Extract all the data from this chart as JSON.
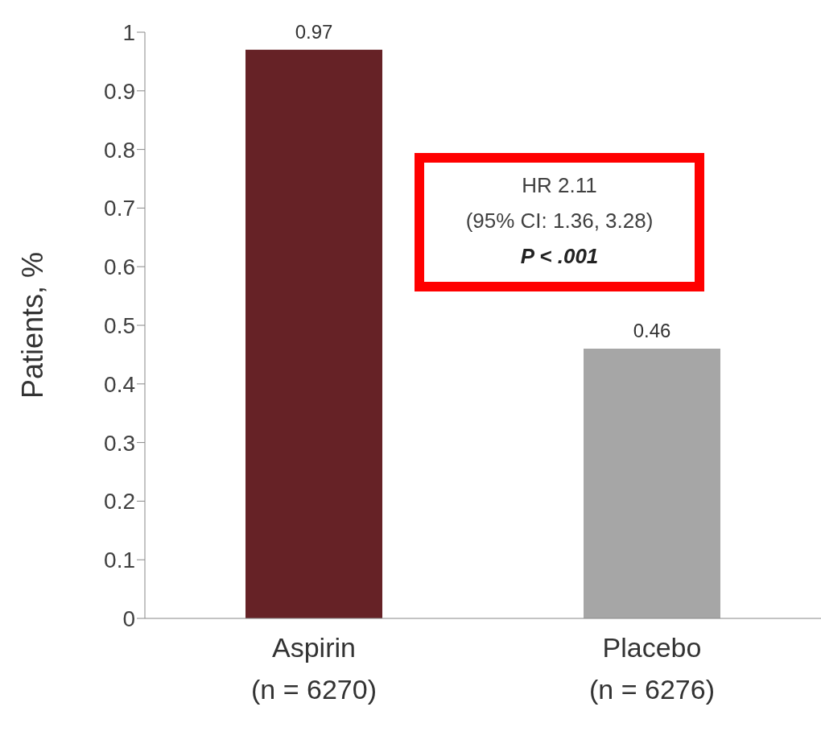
{
  "chart_data": {
    "type": "bar",
    "ylabel": "Patients, %",
    "categories": [
      "Aspirin\n(n = 6270)",
      "Placebo\n(n = 6276)"
    ],
    "values": [
      0.97,
      0.46
    ],
    "colors": [
      "#662226",
      "#a6a6a6"
    ],
    "ylim": [
      0,
      1
    ],
    "yticks": [
      0,
      0.1,
      0.2,
      0.3,
      0.4,
      0.5,
      0.6,
      0.7,
      0.8,
      0.9,
      1
    ],
    "data_labels": true,
    "annotations": [
      "HR 2.11",
      "(95% CI: 1.36, 3.28)",
      "P < .001"
    ]
  }
}
